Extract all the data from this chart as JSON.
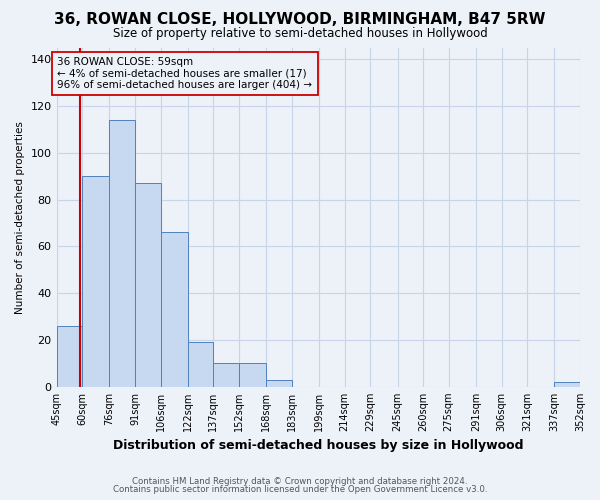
{
  "title": "36, ROWAN CLOSE, HOLLYWOOD, BIRMINGHAM, B47 5RW",
  "subtitle": "Size of property relative to semi-detached houses in Hollywood",
  "xlabel": "Distribution of semi-detached houses by size in Hollywood",
  "ylabel": "Number of semi-detached properties",
  "footnote1": "Contains HM Land Registry data © Crown copyright and database right 2024.",
  "footnote2": "Contains public sector information licensed under the Open Government Licence v3.0.",
  "annotation_line1": "36 ROWAN CLOSE: 59sqm",
  "annotation_line2": "← 4% of semi-detached houses are smaller (17)",
  "annotation_line3": "96% of semi-detached houses are larger (404) →",
  "property_size": 59,
  "bar_edges": [
    45,
    60,
    76,
    91,
    106,
    122,
    137,
    152,
    168,
    183,
    199,
    214,
    229,
    245,
    260,
    275,
    291,
    306,
    321,
    337,
    352
  ],
  "bar_heights": [
    26,
    90,
    114,
    87,
    66,
    19,
    10,
    10,
    3,
    0,
    0,
    0,
    0,
    0,
    0,
    0,
    0,
    0,
    0,
    2
  ],
  "bar_labels": [
    "45sqm",
    "60sqm",
    "76sqm",
    "91sqm",
    "106sqm",
    "122sqm",
    "137sqm",
    "152sqm",
    "168sqm",
    "183sqm",
    "199sqm",
    "214sqm",
    "229sqm",
    "245sqm",
    "260sqm",
    "275sqm",
    "291sqm",
    "306sqm",
    "321sqm",
    "337sqm",
    "352sqm"
  ],
  "bar_color": "#c6d9f1",
  "bar_edge_color": "#4f81bd",
  "highlight_line_color": "#cc0000",
  "grid_color": "#c8d4e8",
  "bg_color": "#edf1f8",
  "ylim": [
    0,
    145
  ],
  "yticks": [
    0,
    20,
    40,
    60,
    80,
    100,
    120,
    140
  ],
  "xlim_left": 45,
  "xlim_right": 352,
  "title_fontsize": 11,
  "subtitle_fontsize": 8.5,
  "ylabel_fontsize": 7.5,
  "xlabel_fontsize": 9,
  "xtick_fontsize": 7,
  "ytick_fontsize": 8,
  "annot_fontsize": 7.5,
  "footnote_fontsize": 6.2
}
